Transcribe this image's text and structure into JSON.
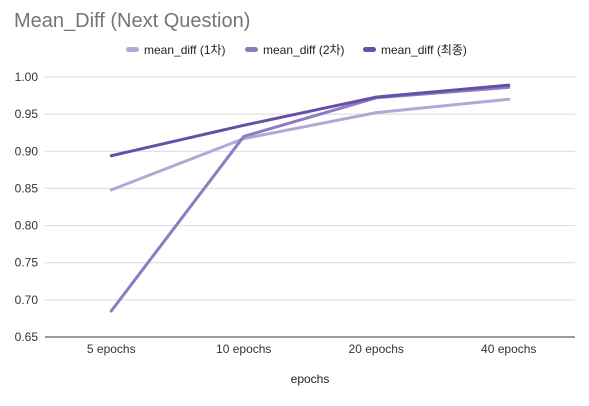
{
  "chart_data": {
    "type": "line",
    "title": "Mean_Diff (Next Question)",
    "xlabel": "epochs",
    "ylabel": "",
    "categories": [
      "5 epochs",
      "10 epochs",
      "20 epochs",
      "40 epochs"
    ],
    "y_ticks": [
      "0.65",
      "0.70",
      "0.75",
      "0.80",
      "0.85",
      "0.90",
      "0.95",
      "1.00"
    ],
    "ylim": [
      0.65,
      1.0
    ],
    "grid": true,
    "legend_position": "top",
    "series": [
      {
        "name": "mean_diff (1차)",
        "color": "#b4a7d6",
        "values": [
          0.848,
          0.917,
          0.952,
          0.97
        ]
      },
      {
        "name": "mean_diff (2차)",
        "color": "#8e7cc3",
        "values": [
          0.685,
          0.92,
          0.972,
          0.986
        ]
      },
      {
        "name": "mean_diff (최종)",
        "color": "#674ea7",
        "values": [
          0.894,
          0.935,
          0.973,
          0.989
        ]
      }
    ]
  }
}
